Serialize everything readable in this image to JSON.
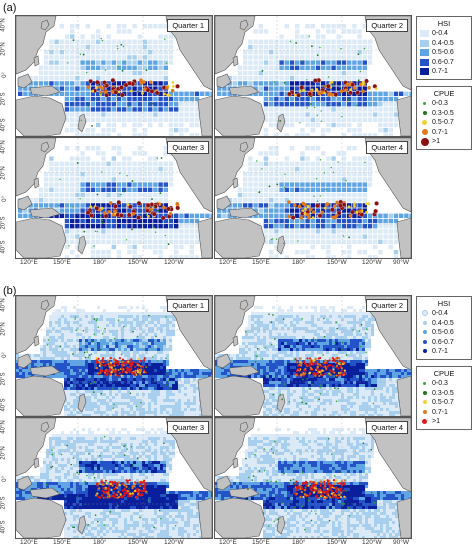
{
  "panels": [
    {
      "label": "(a)"
    },
    {
      "label": "(b)"
    }
  ],
  "quarters": [
    "Quarter 1",
    "Quarter 2",
    "Quarter 3",
    "Quarter 4"
  ],
  "latitude_labels": [
    "40°N",
    "20°N",
    "0°",
    "20°S",
    "40°S"
  ],
  "longitude_labels": [
    "120°E",
    "150°E",
    "180°",
    "150°W",
    "120°W",
    "90°W"
  ],
  "hsi_legend": {
    "title": "HSI",
    "items": [
      {
        "label": "0-0.4",
        "color": "#dbeaf6"
      },
      {
        "label": "0.4-0.5",
        "color": "#a9cfee"
      },
      {
        "label": "0.5-0.6",
        "color": "#5fa4e3"
      },
      {
        "label": "0.6-0.7",
        "color": "#2453c8"
      },
      {
        "label": "0.7-1",
        "color": "#0a1f9c"
      }
    ]
  },
  "cpue_legend": {
    "title": "CPUE",
    "items": [
      {
        "label": "0-0.3",
        "color": "#3aa832"
      },
      {
        "label": "0.3-0.5",
        "color": "#1f7a1f"
      },
      {
        "label": "0.5-0.7",
        "color": "#f2d230"
      },
      {
        "label": "0.7-1",
        "color": "#e07a1a"
      },
      {
        "label": ">1",
        "color": "#8b1010"
      }
    ]
  },
  "colors": {
    "land": "#c2c2c2",
    "panel_b_cpue_top": "#e01818"
  }
}
